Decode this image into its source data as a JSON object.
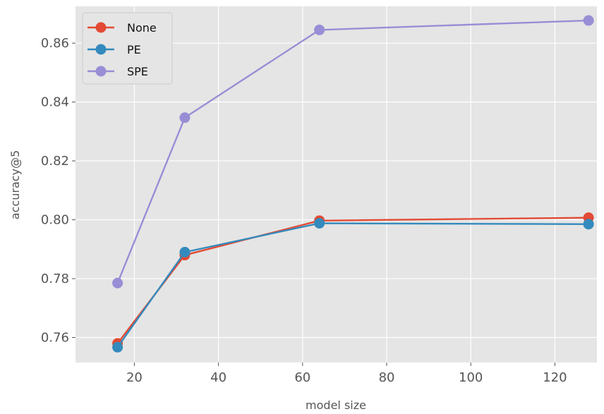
{
  "chart_data": {
    "type": "line",
    "title": "",
    "xlabel": "model size",
    "ylabel": "accuracy@5",
    "xlim": [
      6,
      130
    ],
    "ylim": [
      0.7515,
      0.8725
    ],
    "xticks": [
      20,
      40,
      60,
      80,
      100,
      120
    ],
    "xtick_labels": [
      "20",
      "40",
      "60",
      "80",
      "100",
      "120"
    ],
    "yticks": [
      0.76,
      0.78,
      0.8,
      0.82,
      0.84,
      0.86
    ],
    "ytick_labels": [
      "0.76",
      "0.78",
      "0.80",
      "0.82",
      "0.84",
      "0.86"
    ],
    "x": [
      16,
      32,
      64,
      128
    ],
    "grid": true,
    "legend_position": "top-left",
    "series": [
      {
        "name": "None",
        "values": [
          0.758,
          0.788,
          0.7997,
          0.8007
        ],
        "color": "#E24A33"
      },
      {
        "name": "PE",
        "values": [
          0.7567,
          0.789,
          0.7988,
          0.7985
        ],
        "color": "#348ABD"
      },
      {
        "name": "SPE",
        "values": [
          0.7785,
          0.8347,
          0.8645,
          0.8677
        ],
        "color": "#988ED5"
      }
    ]
  }
}
